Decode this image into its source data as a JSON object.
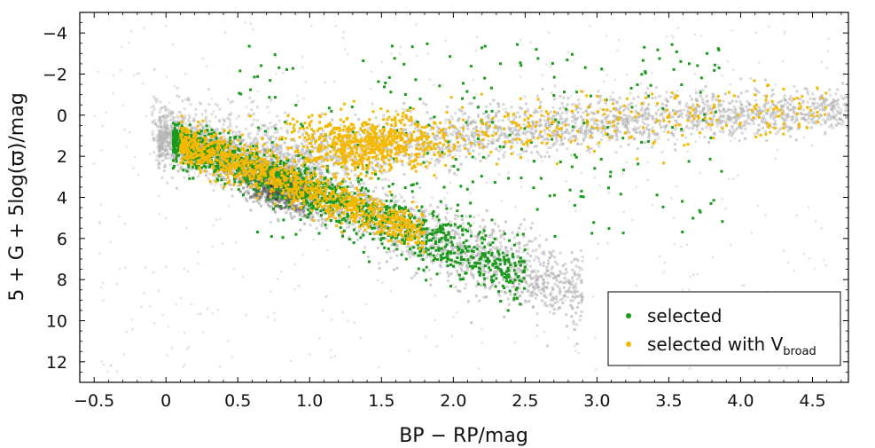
{
  "chart_data": {
    "type": "scatter",
    "title": "",
    "xlabel": "BP − RP/mag",
    "ylabel": "5 + G + 5log(ϖ)/mag",
    "xlim": [
      -0.6,
      4.75
    ],
    "ylim": [
      13,
      -5
    ],
    "y_inverted": true,
    "grid": false,
    "legend_position": "bottom-right",
    "x_ticks": [
      -0.5,
      0,
      0.5,
      1.0,
      1.5,
      2.0,
      2.5,
      3.0,
      3.5,
      4.0,
      4.5
    ],
    "x_tick_labels": [
      "−0.5",
      "0",
      "0.5",
      "1.0",
      "1.5",
      "2.0",
      "2.5",
      "3.0",
      "3.5",
      "4.0",
      "4.5"
    ],
    "y_ticks": [
      -4,
      -2,
      0,
      2,
      4,
      6,
      8,
      10,
      12
    ],
    "y_tick_labels": [
      "−4",
      "−2",
      "0",
      "2",
      "4",
      "6",
      "8",
      "10",
      "12"
    ],
    "background_population": {
      "color": "#b4b4b4",
      "core_color": "#2a2a2a",
      "description_regions": [
        {
          "region": "main_sequence",
          "from": [
            0.0,
            1.2
          ],
          "to": [
            2.85,
            11.2
          ]
        },
        {
          "region": "red_giant_branch",
          "from": [
            0.9,
            2.5
          ],
          "to": [
            4.7,
            0.4
          ]
        },
        {
          "region": "dense_core",
          "center": [
            0.78,
            3.6
          ]
        }
      ]
    },
    "series": [
      {
        "name": "selected",
        "color": "#1a9a1a",
        "regions": [
          {
            "region": "main_sequence",
            "from": [
              0.05,
              1.3
            ],
            "to": [
              2.5,
              9.5
            ]
          },
          {
            "region": "sparse_upper",
            "x_range": [
              0.5,
              3.9
            ],
            "y_range": [
              -4,
              6
            ]
          }
        ]
      },
      {
        "name": "selected with V",
        "name_subscript": "broad",
        "color": "#f5b800",
        "regions": [
          {
            "region": "main_sequence",
            "from": [
              0.1,
              2.0
            ],
            "to": [
              1.8,
              7.0
            ]
          },
          {
            "region": "clump",
            "center": [
              1.4,
              1.3
            ]
          },
          {
            "region": "giant_branch",
            "from": [
              1.2,
              -1.8
            ],
            "to": [
              4.6,
              0.2
            ]
          }
        ]
      }
    ]
  }
}
